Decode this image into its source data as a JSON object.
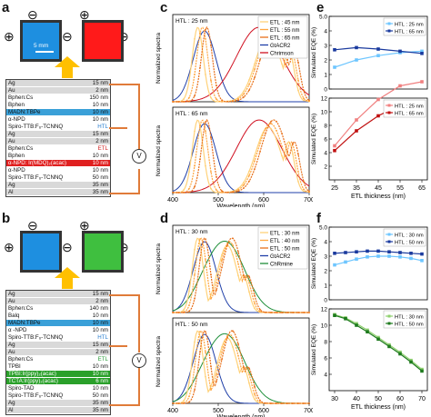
{
  "panels": {
    "a": "a",
    "b": "b",
    "c": "c",
    "d": "d",
    "e": "e",
    "f": "f"
  },
  "device_a": {
    "scale_label": "5 mm",
    "symbols": {
      "plus": "⊕",
      "minus": "⊖"
    },
    "layers": [
      {
        "m": "Ag",
        "t": "15 nm",
        "c": "#d9d9d9"
      },
      {
        "m": "Au",
        "t": "2 nm",
        "c": "#d9d9d9"
      },
      {
        "m": "Bphen:Cs",
        "t": "150 nm",
        "c": "#ffffff"
      },
      {
        "m": "Bphen",
        "t": "10 nm",
        "c": "#ffffff"
      },
      {
        "m": "MADN:TBPe",
        "t": "10 nm",
        "c": "#3aa0d8"
      },
      {
        "m": "α-NPD",
        "t": "10 nm",
        "c": "#ffffff"
      },
      {
        "m": "Spiro-TTB:F₆-TCNNQ",
        "t": "HTL",
        "c": "#ffffff",
        "tc": "#2a7fd0"
      },
      {
        "m": "Ag",
        "t": "15 nm",
        "c": "#d9d9d9"
      },
      {
        "m": "Au",
        "t": "2 nm",
        "c": "#d9d9d9"
      },
      {
        "m": "Bphen:Cs",
        "t": "ETL",
        "c": "#ffffff",
        "tc": "#d02020"
      },
      {
        "m": "Bphen",
        "t": "10 nm",
        "c": "#ffffff"
      },
      {
        "m": "α-NPD: Ir(MDQ)₂(acac)",
        "t": "10 nm",
        "c": "#e02020",
        "fc": "#ffffff"
      },
      {
        "m": "α-NPD",
        "t": "10 nm",
        "c": "#ffffff"
      },
      {
        "m": "Spiro-TTB:F₆-TCNNQ",
        "t": "50 nm",
        "c": "#ffffff"
      },
      {
        "m": "Ag",
        "t": "35 nm",
        "c": "#d9d9d9"
      },
      {
        "m": "Al",
        "t": "35 nm",
        "c": "#d9d9d9"
      }
    ]
  },
  "device_b": {
    "layers": [
      {
        "m": "Ag",
        "t": "15 nm",
        "c": "#d9d9d9"
      },
      {
        "m": "Au",
        "t": "2 nm",
        "c": "#d9d9d9"
      },
      {
        "m": "Bphen:Cs",
        "t": "140 nm",
        "c": "#ffffff"
      },
      {
        "m": "Balq",
        "t": "10 nm",
        "c": "#ffffff"
      },
      {
        "m": "MADN:TBPe",
        "t": "10 nm",
        "c": "#3aa0d8"
      },
      {
        "m": "α -NPD",
        "t": "10 nm",
        "c": "#ffffff"
      },
      {
        "m": "Spiro-TTB:F₆-TCNNQ",
        "t": "HTL",
        "c": "#ffffff",
        "tc": "#2a7fd0"
      },
      {
        "m": "Ag",
        "t": "15 nm",
        "c": "#d9d9d9"
      },
      {
        "m": "Au",
        "t": "2 nm",
        "c": "#d9d9d9"
      },
      {
        "m": "Bphen:Cs",
        "t": "ETL",
        "c": "#ffffff",
        "tc": "#2a9d3a"
      },
      {
        "m": "TPBI",
        "t": "10 nm",
        "c": "#ffffff"
      },
      {
        "m": "TPBI:Ir(ppy)₂(acac)",
        "t": "10 nm",
        "c": "#2aa02a",
        "fc": "#ffffff"
      },
      {
        "m": "TCTA:Ir(ppy)₂(acac)",
        "t": "6 nm",
        "c": "#2aa02a",
        "fc": "#ffffff"
      },
      {
        "m": "Spiro-TAD",
        "t": "10 nm",
        "c": "#ffffff"
      },
      {
        "m": "Spiro-TTB:F₆-TCNNQ",
        "t": "50 nm",
        "c": "#ffffff"
      },
      {
        "m": "Ag",
        "t": "35 nm",
        "c": "#d9d9d9"
      },
      {
        "m": "Al",
        "t": "35 nm",
        "c": "#d9d9d9"
      }
    ]
  },
  "meter_label": "V",
  "colors": {
    "blue": "#1e8fe0",
    "red": "#ff1a1a",
    "green": "#3fbf3f",
    "arrow": "#ffc000"
  },
  "chart_data": [
    {
      "id": "c",
      "type": "line",
      "xlabel": "Wavelength (nm)",
      "ylabel": "Normalized spectra",
      "xlim": [
        400,
        700
      ],
      "xticks": [
        400,
        500,
        600,
        700
      ],
      "sub_labels": [
        "HTL : 25 nm",
        "HTL : 65 nm"
      ],
      "legend": [
        "ETL : 45 nm",
        "ETL : 55 nm",
        "ETL : 65 nm",
        "GtACR2",
        "Chrimson"
      ],
      "legend_colors": [
        "#ffd27a",
        "#ffa640",
        "#e8701a",
        "#1f3fa8",
        "#d01020"
      ]
    },
    {
      "id": "d",
      "type": "line",
      "xlabel": "Wavelength (nm)",
      "ylabel": "Normalized spectra",
      "xlim": [
        400,
        700
      ],
      "xticks": [
        400,
        500,
        600,
        700
      ],
      "sub_labels": [
        "HTL : 30 nm",
        "HTL : 50 nm"
      ],
      "legend": [
        "ETL : 30 nm",
        "ETL : 40 nm",
        "ETL : 50 nm",
        "GtACR2",
        "ChRmine"
      ],
      "legend_colors": [
        "#ffd27a",
        "#ffa640",
        "#e8701a",
        "#1f3fa8",
        "#1f8f3a"
      ]
    },
    {
      "id": "e",
      "type": "line",
      "xlabel": "ETL thickness (nm)",
      "ylabel": "Simulated EQE (%)",
      "x": [
        25,
        35,
        45,
        55,
        65
      ],
      "top": {
        "ylim": [
          0,
          5.0
        ],
        "yticks": [
          0,
          1,
          2,
          3,
          4,
          5.0
        ],
        "ytick_labels": [
          "0",
          "1",
          "2",
          "3",
          "4",
          "5.0"
        ],
        "series": [
          {
            "name": "HTL : 25 nm",
            "color": "#6ec6ff",
            "values": [
              1.5,
              2.0,
              2.3,
              2.5,
              2.6
            ]
          },
          {
            "name": "HTL : 65 nm",
            "color": "#1a3a9e",
            "values": [
              2.7,
              2.85,
              2.75,
              2.6,
              2.45
            ]
          }
        ]
      },
      "bottom": {
        "ylim": [
          0,
          12
        ],
        "yticks": [
          2,
          4,
          6,
          8,
          10,
          12
        ],
        "series": [
          {
            "name": "HTL : 25 nm",
            "color": "#f08080",
            "values": [
              5.0,
              8.8,
              11.8,
              13.8,
              14.4
            ]
          },
          {
            "name": "HTL : 65 nm",
            "color": "#c01010",
            "values": [
              4.3,
              7.2,
              9.4,
              11.0,
              10.6
            ]
          }
        ]
      }
    },
    {
      "id": "f",
      "type": "line",
      "xlabel": "ETL thickness (nm)",
      "ylabel": "Simulated EQE (%)",
      "x": [
        30,
        35,
        40,
        45,
        50,
        55,
        60,
        65,
        70
      ],
      "xticks": [
        30,
        40,
        50,
        60,
        70
      ],
      "top": {
        "ylim": [
          0,
          5.0
        ],
        "yticks": [
          0,
          1,
          2,
          3,
          4,
          5.0
        ],
        "ytick_labels": [
          "0",
          "1",
          "2",
          "3",
          "4",
          "5.0"
        ],
        "series": [
          {
            "name": "HTL : 30 nm",
            "color": "#6ec6ff",
            "values": [
              2.4,
              2.6,
              2.8,
              2.95,
              3.0,
              3.0,
              2.95,
              2.85,
              2.7
            ]
          },
          {
            "name": "HTL : 50 nm",
            "color": "#1a3a9e",
            "values": [
              3.2,
              3.25,
              3.3,
              3.35,
              3.35,
              3.3,
              3.25,
              3.2,
              3.15
            ]
          }
        ]
      },
      "bottom": {
        "ylim": [
          2,
          12
        ],
        "yticks": [
          4,
          6,
          8,
          10,
          12
        ],
        "series": [
          {
            "name": "HTL : 30 nm",
            "color": "#8fd06f",
            "values": [
              11.3,
              10.9,
              10.2,
              9.4,
              8.5,
              7.6,
              6.7,
              5.7,
              4.6
            ]
          },
          {
            "name": "HTL : 50 nm",
            "color": "#1e7a1e",
            "values": [
              11.2,
              10.8,
              10.0,
              9.2,
              8.3,
              7.4,
              6.5,
              5.5,
              4.4
            ]
          }
        ]
      }
    }
  ]
}
